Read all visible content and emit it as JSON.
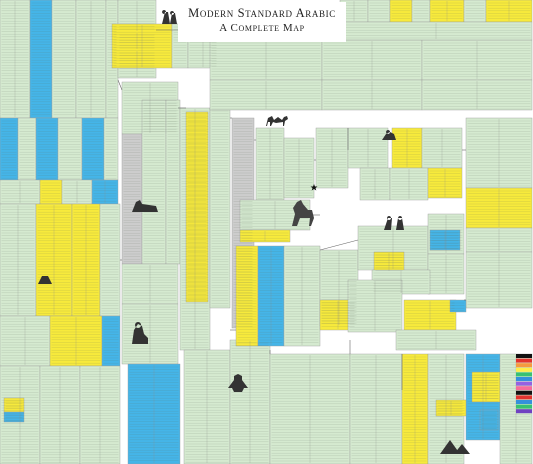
{
  "poster": {
    "title_line1": "Modern Standard Arabic",
    "title_line2": "A Complete Map"
  },
  "colors": {
    "green": "#d5ead0",
    "yellow": "#f7ea3c",
    "blue": "#45b5e8",
    "grey": "#cdcdcd",
    "line": "#666666"
  },
  "illustrations": [
    "two-figures-illustration",
    "camel-illustration",
    "crescent-star-icon",
    "horse-illustration",
    "fighters-illustration",
    "sphinx-illustration",
    "seated-figure-illustration",
    "lamp-illustration",
    "pyramids-illustration",
    "rider-illustration",
    "archer-illustration",
    "palette-swatches"
  ],
  "swatch_colors": [
    "#111111",
    "#e3342f",
    "#f6993f",
    "#ffed4a",
    "#38c172",
    "#3490dc",
    "#9561e2",
    "#f66d9b",
    "#111111",
    "#e3342f",
    "#3490dc",
    "#38c172",
    "#6f42c1"
  ]
}
